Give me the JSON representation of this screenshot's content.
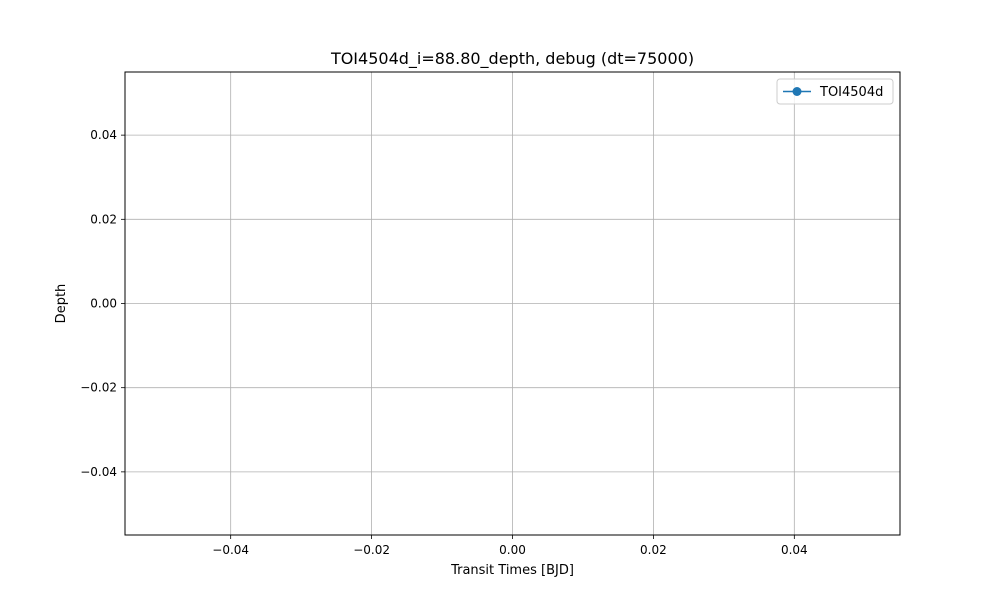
{
  "chart_data": {
    "type": "line",
    "title": "TOI4504d_i=88.80_depth, debug (dt=75000)",
    "xlabel": "Transit Times [BJD]",
    "ylabel": "Depth",
    "xlim": [
      -0.055,
      0.055
    ],
    "ylim": [
      -0.055,
      0.055
    ],
    "x_ticks": [
      -0.04,
      -0.02,
      0.0,
      0.02,
      0.04
    ],
    "x_tick_labels": [
      "−0.04",
      "−0.02",
      "0.00",
      "0.02",
      "0.04"
    ],
    "y_ticks": [
      -0.04,
      -0.02,
      0.0,
      0.02,
      0.04
    ],
    "y_tick_labels": [
      "−0.04",
      "−0.02",
      "0.00",
      "0.02",
      "0.04"
    ],
    "grid": true,
    "legend_position": "top-right",
    "series": [
      {
        "name": "TOI4504d",
        "color": "#1f77b4",
        "marker": "circle",
        "x": [],
        "y": []
      }
    ]
  }
}
